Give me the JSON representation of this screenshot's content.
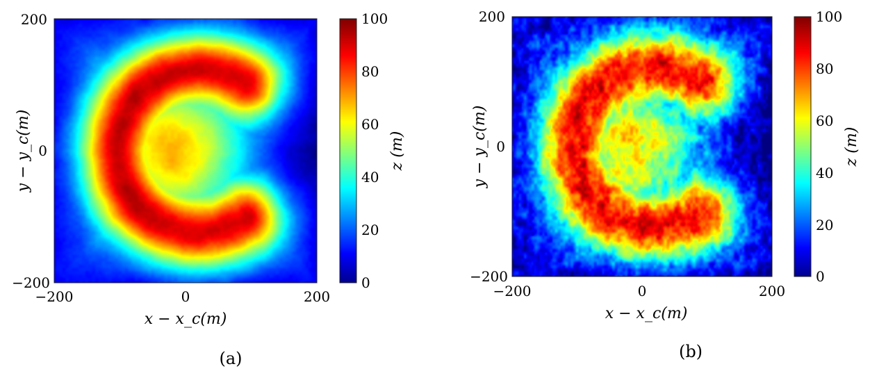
{
  "chart_data": [
    {
      "type": "heatmap",
      "panel_label": "(a)",
      "xlabel": "x − x_c(m)",
      "ylabel": "y − y_c(m)",
      "colorbar_label": "z (m)",
      "xlim": [
        -200,
        200
      ],
      "ylim": [
        -200,
        200
      ],
      "zlim": [
        0,
        100
      ],
      "xticks": [
        "−200",
        "0",
        "200"
      ],
      "yticks": [
        "−200",
        "0",
        "200"
      ],
      "colorbar_ticks": [
        "0",
        "20",
        "40",
        "60",
        "80",
        "100"
      ],
      "colormap": "jet",
      "pattern": "smooth C-shaped ridge, peak ~95 m along arc from (70,110) through (-100,0) to (70,-110), background ~20-40 m"
    },
    {
      "type": "heatmap",
      "panel_label": "(b)",
      "xlabel": "x − x_c(m)",
      "ylabel": "y − y_c(m)",
      "colorbar_label": "z (m)",
      "xlim": [
        -200,
        200
      ],
      "ylim": [
        -200,
        200
      ],
      "zlim": [
        0,
        100
      ],
      "xticks": [
        "−200",
        "0",
        "200"
      ],
      "yticks": [
        "−200",
        "0",
        "200"
      ],
      "colorbar_ticks": [
        "0",
        "20",
        "40",
        "60",
        "80",
        "100"
      ],
      "colormap": "jet",
      "pattern": "rough (noisy) C-shaped ridge, peak ~90 m, background ~20-45 m"
    }
  ]
}
